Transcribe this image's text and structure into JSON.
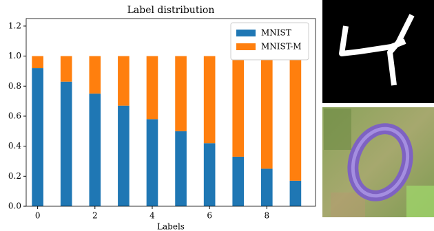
{
  "chart_data": {
    "type": "stacked_bar",
    "title": "Label distribution",
    "x_label": "Labels",
    "x": [
      0,
      1,
      2,
      3,
      4,
      5,
      6,
      7,
      8,
      9
    ],
    "series": [
      {
        "name": "MNIST",
        "color": "#1f77b4",
        "values": [
          0.92,
          0.83,
          0.75,
          0.67,
          0.58,
          0.5,
          0.42,
          0.33,
          0.25,
          0.17
        ]
      },
      {
        "name": "MNIST-M",
        "color": "#ff7f0e",
        "values": [
          0.08,
          0.17,
          0.25,
          0.33,
          0.42,
          0.5,
          0.58,
          0.67,
          0.75,
          0.83
        ]
      }
    ],
    "xlim": [
      -0.4,
      9.7
    ],
    "xticks": [
      0,
      2,
      4,
      6,
      8
    ],
    "ylim": [
      0,
      1.25
    ],
    "yticks": [
      {
        "value": 0,
        "label": "0.0"
      },
      0.2,
      0.4,
      0.6,
      0.8,
      {
        "value": 1,
        "label": "1.0"
      },
      1.2
    ],
    "legend": "upper right"
  }
}
